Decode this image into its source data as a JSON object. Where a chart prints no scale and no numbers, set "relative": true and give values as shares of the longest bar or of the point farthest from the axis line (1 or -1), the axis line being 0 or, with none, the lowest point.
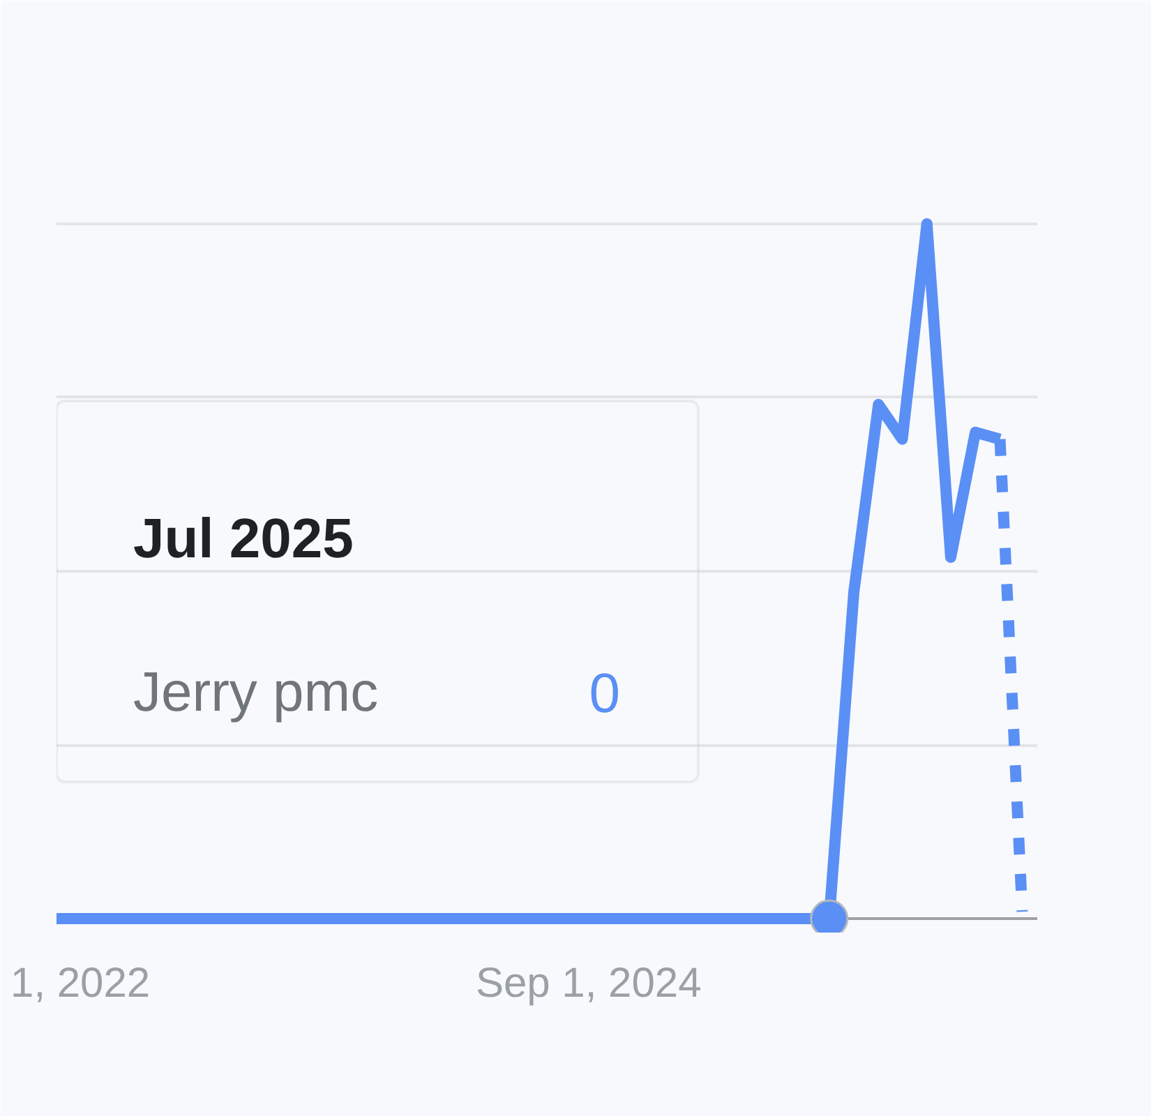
{
  "chart_data": {
    "type": "line",
    "relative": true,
    "x": [
      "2022-11",
      "2022-12",
      "2023-01",
      "2023-02",
      "2023-03",
      "2023-04",
      "2023-05",
      "2023-06",
      "2023-07",
      "2023-08",
      "2023-09",
      "2023-10",
      "2023-11",
      "2023-12",
      "2024-01",
      "2024-02",
      "2024-03",
      "2024-04",
      "2024-05",
      "2024-06",
      "2024-07",
      "2024-08",
      "2024-09",
      "2024-10",
      "2024-11",
      "2024-12",
      "2025-01",
      "2025-02",
      "2025-03",
      "2025-04",
      "2025-05",
      "2025-06",
      "2025-07",
      "2025-08",
      "2025-09",
      "2025-10",
      "2025-11",
      "2025-12",
      "2026-01",
      "2026-02"
    ],
    "series": [
      {
        "name": "Jerry pmc",
        "color": "#5a8ff5",
        "line_style": "solid",
        "values": [
          0,
          0,
          0,
          0,
          0,
          0,
          0,
          0,
          0,
          0,
          0,
          0,
          0,
          0,
          0,
          0,
          0,
          0,
          0,
          0,
          0,
          0,
          0,
          0,
          0,
          0,
          0,
          0,
          0,
          0,
          0,
          0,
          0,
          0.47,
          0.74,
          0.69,
          1,
          0.52,
          0.7,
          0.69
        ]
      },
      {
        "color": "#5a8ff5",
        "line_style": "dotted",
        "x": [
          "2026-02",
          "2026-03"
        ],
        "values": [
          0.69,
          0.01
        ]
      },
      {
        "type": "scatter",
        "marker": "circle",
        "color": "#5a8ff5",
        "x": [
          "2025-07"
        ],
        "values": [
          0
        ]
      }
    ],
    "xlim": [
      "2022-11-01",
      "2026-03-20"
    ],
    "xticks": [
      {
        "value": "2022-12-01",
        "label": "1, 2022"
      },
      {
        "value": "2024-09-01",
        "label": "Sep 1, 2024"
      }
    ],
    "grid": "y",
    "annotations": [
      "Jul 2025",
      "0"
    ]
  }
}
